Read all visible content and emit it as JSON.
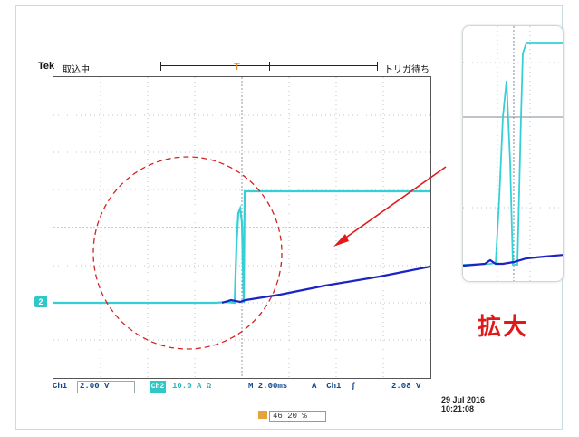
{
  "scope": {
    "brand": "Tek",
    "acquisition_mode": "取込中",
    "trigger_status": "トリガ待ち",
    "trigger_position_label": "T",
    "trigger_marker": "U",
    "channel_marker": "2"
  },
  "readout": {
    "ch1_label": "Ch1",
    "ch1_scale": "2.00 V",
    "ch2_badge": "Ch2",
    "ch2_scale": "10.0 A Ω",
    "timebase": "M 2.00ms",
    "trigger_source": "A  Ch1  ∫",
    "trigger_level": "2.08 V",
    "date": "29 Jul  2016",
    "time": "10:21:08",
    "measurement_marker": "U",
    "measurement_value": "46.20 %"
  },
  "annotation": {
    "zoom_label": "拡大"
  },
  "colors": {
    "cyan_trace": "#35d0d6",
    "blue_trace": "#1a23c4",
    "annotation_red": "#e0191a",
    "trigger_orange": "#e7a23a"
  }
}
